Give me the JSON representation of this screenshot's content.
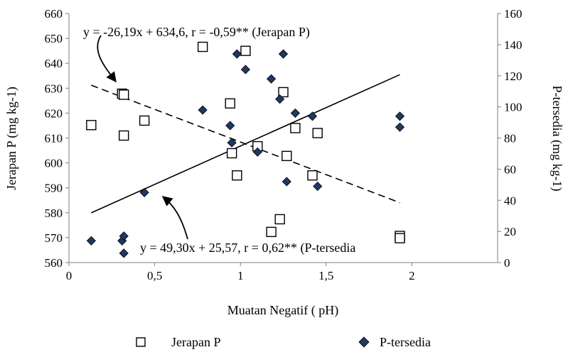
{
  "chart_data": {
    "type": "scatter",
    "xlabel": "Muatan Negatif (  pH)",
    "ylabel_left": "Jerapan P (mg kg-1)",
    "ylabel_right": "P-tersedia (mg kg-1)",
    "x_range": [
      0,
      2.5
    ],
    "x_ticks": [
      "0",
      "0,5",
      "1",
      "1,5",
      "2"
    ],
    "y_left_range": [
      560,
      660
    ],
    "y_left_ticks": [
      "560",
      "570",
      "580",
      "590",
      "600",
      "610",
      "620",
      "630",
      "640",
      "650",
      "660"
    ],
    "y_right_range": [
      0,
      160
    ],
    "y_right_ticks": [
      "0",
      "20",
      "40",
      "60",
      "80",
      "100",
      "120",
      "140",
      "160"
    ],
    "grid": false,
    "legend_position": "bottom",
    "series": [
      {
        "name": "Jerapan P",
        "axis": "left",
        "marker": "open-square",
        "color": "#000000",
        "points": [
          [
            0.13,
            615.2
          ],
          [
            0.31,
            627.8
          ],
          [
            0.32,
            627.4
          ],
          [
            0.32,
            611.0
          ],
          [
            0.44,
            617.0
          ],
          [
            0.78,
            646.6
          ],
          [
            0.94,
            623.9
          ],
          [
            0.95,
            603.9
          ],
          [
            0.98,
            595.0
          ],
          [
            1.03,
            645.0
          ],
          [
            1.1,
            606.7
          ],
          [
            1.18,
            572.3
          ],
          [
            1.23,
            577.4
          ],
          [
            1.25,
            628.4
          ],
          [
            1.27,
            602.8
          ],
          [
            1.32,
            614.0
          ],
          [
            1.42,
            595.0
          ],
          [
            1.45,
            612.0
          ],
          [
            1.93,
            570.7
          ],
          [
            1.93,
            569.8
          ]
        ]
      },
      {
        "name": "P-tersedia",
        "axis": "right",
        "marker": "filled-diamond",
        "color": "#1f3864",
        "points": [
          [
            0.13,
            14
          ],
          [
            0.31,
            14
          ],
          [
            0.32,
            17
          ],
          [
            0.32,
            6
          ],
          [
            0.44,
            45
          ],
          [
            0.78,
            98
          ],
          [
            0.94,
            88
          ],
          [
            0.95,
            77
          ],
          [
            0.98,
            134
          ],
          [
            1.03,
            124
          ],
          [
            1.1,
            71
          ],
          [
            1.18,
            118
          ],
          [
            1.23,
            105
          ],
          [
            1.25,
            134
          ],
          [
            1.27,
            52
          ],
          [
            1.32,
            96
          ],
          [
            1.42,
            94
          ],
          [
            1.45,
            49
          ],
          [
            1.93,
            94
          ],
          [
            1.93,
            87
          ]
        ]
      }
    ],
    "trendlines": [
      {
        "series": "Jerapan P",
        "axis": "left",
        "style": "dashed",
        "slope": -26.19,
        "intercept": 634.6,
        "x_from": 0.13,
        "x_to": 1.93,
        "label": "y = -26,19x + 634,6, r = -0,59** (Jerapan P)"
      },
      {
        "series": "P-tersedia",
        "axis": "right",
        "style": "solid",
        "slope": 49.3,
        "intercept": 25.57,
        "x_from": 0.13,
        "x_to": 1.93,
        "label": "y = 49,30x + 25,57, r = 0,62** (P-tersedia"
      }
    ]
  }
}
